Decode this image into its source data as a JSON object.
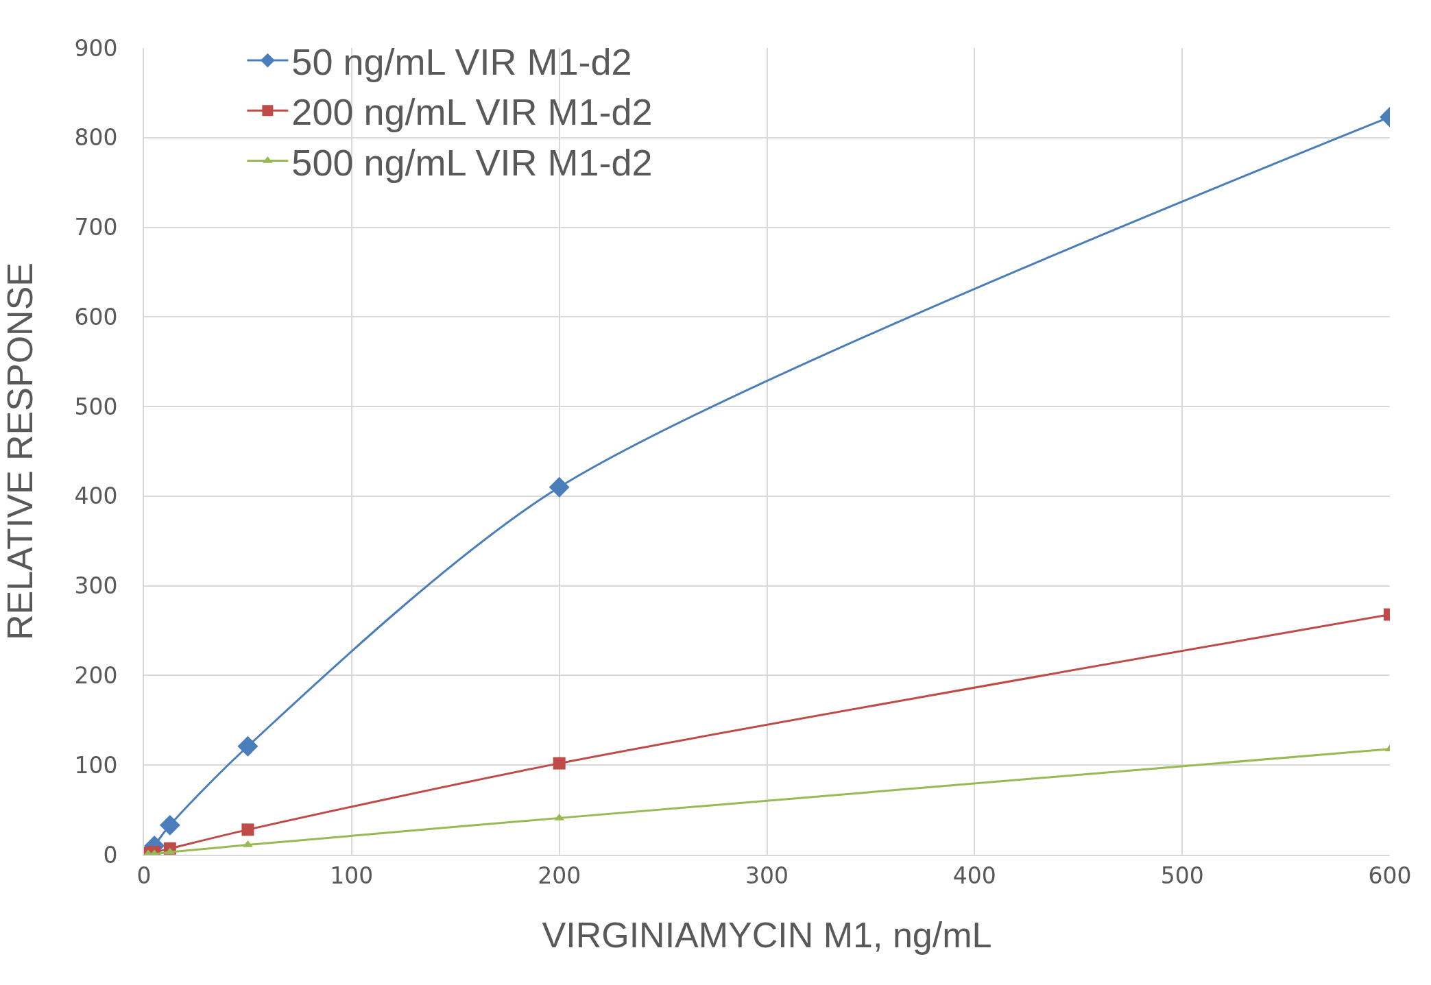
{
  "chart_data": {
    "type": "line",
    "xlabel": "VIRGINIAMYCIN M1, ng/mL",
    "ylabel": "RELATIVE RESPONSE",
    "x": [
      2,
      5,
      12.5,
      50,
      200,
      600
    ],
    "series": [
      {
        "name": "50 ng/mL VIR M1-d2",
        "color": "#4a7ebb",
        "marker": "diamond",
        "values": [
          null,
          10,
          33,
          121,
          410,
          823
        ]
      },
      {
        "name": "200 ng/mL VIR M1-d2",
        "color": "#be4b48",
        "marker": "square",
        "values": [
          2,
          3,
          7,
          28,
          102,
          268
        ]
      },
      {
        "name": "500 ng/mL VIR M1-d2",
        "color": "#98b954",
        "marker": "triangle",
        "values": [
          1,
          1,
          3,
          11,
          41,
          118
        ]
      }
    ],
    "xlim": [
      0,
      600
    ],
    "xticks": [
      0,
      100,
      200,
      300,
      400,
      500,
      600
    ],
    "ylim": [
      0,
      900
    ],
    "yticks": [
      0,
      100,
      200,
      300,
      400,
      500,
      600,
      700,
      800,
      900
    ],
    "grid": true,
    "legend": "top left",
    "line_style": "solid"
  }
}
